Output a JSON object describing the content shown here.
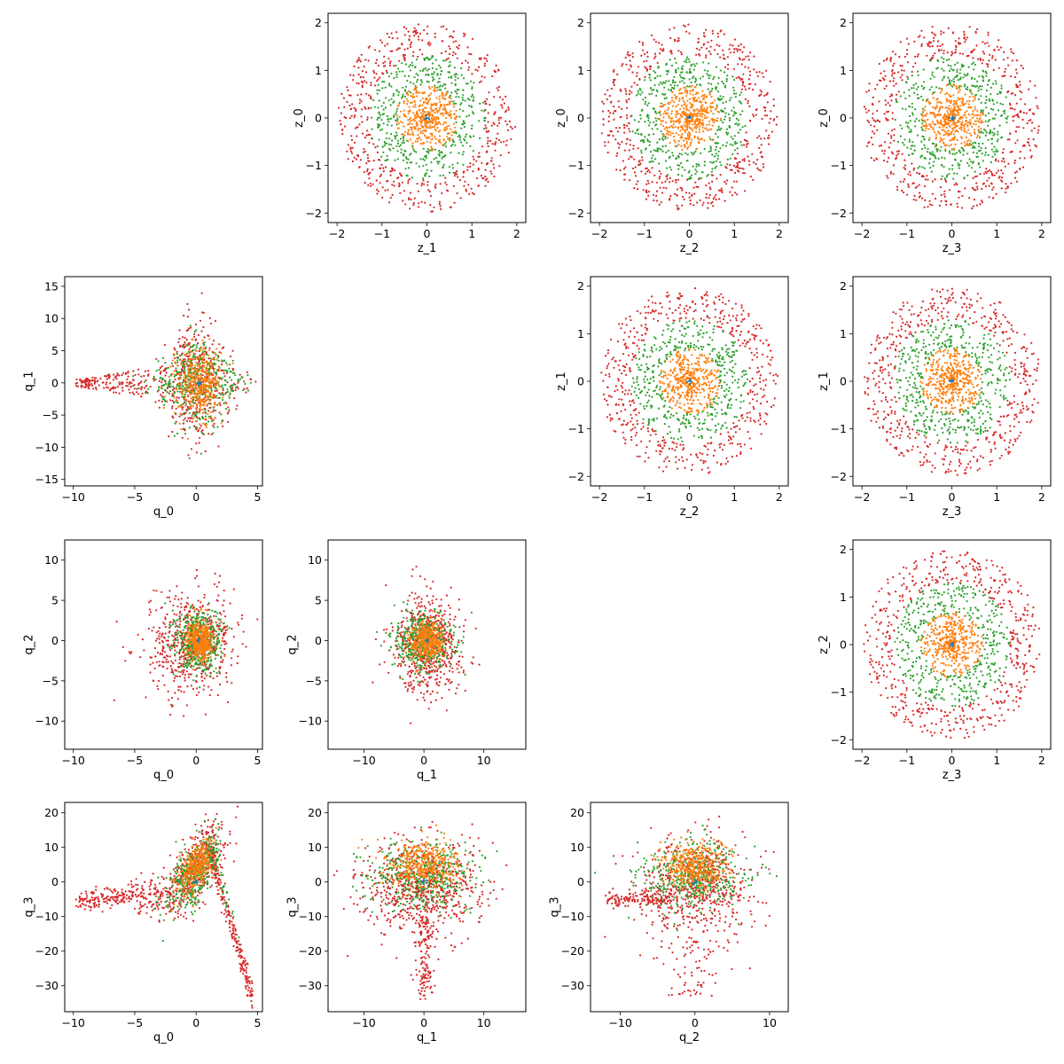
{
  "figure": {
    "description_visible": "",
    "series_colors": {
      "innermost": "#1f77b4",
      "inner": "#ff7f0e",
      "middle": "#2ca02c",
      "outer": "#d62728"
    }
  },
  "chart_data": [
    {
      "id": "z1_z0",
      "type": "scatter",
      "xlabel": "z_1",
      "ylabel": "z_0",
      "xlim": [
        -2.2,
        2.2
      ],
      "ylim": [
        -2.2,
        2.2
      ],
      "xticks": [
        -2,
        -1,
        0,
        1,
        2
      ],
      "yticks": [
        -2,
        -1,
        0,
        1,
        2
      ],
      "pattern": "rings",
      "series": [
        {
          "color": "#d62728",
          "radius": [
            1.3,
            1.98
          ],
          "n": 520
        },
        {
          "color": "#2ca02c",
          "radius": [
            0.65,
            1.3
          ],
          "n": 420
        },
        {
          "color": "#ff7f0e",
          "radius": [
            0.05,
            0.7
          ],
          "n": 420
        },
        {
          "color": "#1f77b4",
          "radius": [
            0.0,
            0.06
          ],
          "n": 8
        }
      ]
    },
    {
      "id": "z2_z0",
      "type": "scatter",
      "xlabel": "z_2",
      "ylabel": "z_0",
      "xlim": [
        -2.2,
        2.2
      ],
      "ylim": [
        -2.2,
        2.2
      ],
      "xticks": [
        -2,
        -1,
        0,
        1,
        2
      ],
      "yticks": [
        -2,
        -1,
        0,
        1,
        2
      ],
      "pattern": "rings",
      "series": [
        {
          "color": "#d62728",
          "radius": [
            1.3,
            1.98
          ],
          "n": 520
        },
        {
          "color": "#2ca02c",
          "radius": [
            0.65,
            1.3
          ],
          "n": 420
        },
        {
          "color": "#ff7f0e",
          "radius": [
            0.05,
            0.7
          ],
          "n": 420
        },
        {
          "color": "#1f77b4",
          "radius": [
            0.0,
            0.06
          ],
          "n": 8
        }
      ]
    },
    {
      "id": "z3_z0",
      "type": "scatter",
      "xlabel": "z_3",
      "ylabel": "z_0",
      "xlim": [
        -2.2,
        2.2
      ],
      "ylim": [
        -2.2,
        2.2
      ],
      "xticks": [
        -2,
        -1,
        0,
        1,
        2
      ],
      "yticks": [
        -2,
        -1,
        0,
        1,
        2
      ],
      "pattern": "rings",
      "series": [
        {
          "color": "#d62728",
          "radius": [
            1.3,
            1.98
          ],
          "n": 520
        },
        {
          "color": "#2ca02c",
          "radius": [
            0.65,
            1.3
          ],
          "n": 420
        },
        {
          "color": "#ff7f0e",
          "radius": [
            0.05,
            0.7
          ],
          "n": 420
        },
        {
          "color": "#1f77b4",
          "radius": [
            0.0,
            0.06
          ],
          "n": 8
        }
      ]
    },
    {
      "id": "q0_q1",
      "type": "scatter",
      "xlabel": "q_0",
      "ylabel": "q_1",
      "xlim": [
        -10.7,
        5.4
      ],
      "ylim": [
        -16.0,
        16.5
      ],
      "xticks": [
        -10,
        -5,
        0,
        5
      ],
      "yticks": [
        -15,
        -10,
        -5,
        0,
        5,
        10,
        15
      ],
      "pattern": "diamond_q1",
      "series": [
        {
          "color": "#d62728",
          "n": 650
        },
        {
          "color": "#2ca02c",
          "n": 420
        },
        {
          "color": "#ff7f0e",
          "n": 380
        },
        {
          "color": "#1f77b4",
          "n": 8
        }
      ]
    },
    {
      "id": "z2_z1",
      "type": "scatter",
      "xlabel": "z_2",
      "ylabel": "z_1",
      "xlim": [
        -2.2,
        2.2
      ],
      "ylim": [
        -2.2,
        2.2
      ],
      "xticks": [
        -2,
        -1,
        0,
        1,
        2
      ],
      "yticks": [
        -2,
        -1,
        0,
        1,
        2
      ],
      "pattern": "rings",
      "series": [
        {
          "color": "#d62728",
          "radius": [
            1.3,
            1.98
          ],
          "n": 520
        },
        {
          "color": "#2ca02c",
          "radius": [
            0.65,
            1.3
          ],
          "n": 420
        },
        {
          "color": "#ff7f0e",
          "radius": [
            0.05,
            0.7
          ],
          "n": 420
        },
        {
          "color": "#1f77b4",
          "radius": [
            0.0,
            0.06
          ],
          "n": 8
        }
      ]
    },
    {
      "id": "z3_z1",
      "type": "scatter",
      "xlabel": "z_3",
      "ylabel": "z_1",
      "xlim": [
        -2.2,
        2.2
      ],
      "ylim": [
        -2.2,
        2.2
      ],
      "xticks": [
        -2,
        -1,
        0,
        1,
        2
      ],
      "yticks": [
        -2,
        -1,
        0,
        1,
        2
      ],
      "pattern": "rings",
      "series": [
        {
          "color": "#d62728",
          "radius": [
            1.3,
            1.98
          ],
          "n": 520
        },
        {
          "color": "#2ca02c",
          "radius": [
            0.65,
            1.3
          ],
          "n": 420
        },
        {
          "color": "#ff7f0e",
          "radius": [
            0.05,
            0.7
          ],
          "n": 420
        },
        {
          "color": "#1f77b4",
          "radius": [
            0.0,
            0.06
          ],
          "n": 8
        }
      ]
    },
    {
      "id": "q0_q2",
      "type": "scatter",
      "xlabel": "q_0",
      "ylabel": "q_2",
      "xlim": [
        -10.7,
        5.4
      ],
      "ylim": [
        -13.5,
        12.5
      ],
      "xticks": [
        -10,
        -5,
        0,
        5
      ],
      "yticks": [
        -10,
        -5,
        0,
        5,
        10
      ],
      "pattern": "blob",
      "series": [
        {
          "color": "#d62728",
          "sx": 3.0,
          "sy": 5.2,
          "mx": -0.3,
          "my": -0.5,
          "n": 600
        },
        {
          "color": "#2ca02c",
          "sx": 1.7,
          "sy": 3.3,
          "mx": 0.1,
          "my": 0,
          "n": 450
        },
        {
          "color": "#ff7f0e",
          "sx": 0.9,
          "sy": 2.0,
          "mx": 0.3,
          "my": 0,
          "n": 400
        },
        {
          "color": "#1f77b4",
          "sx": 0.1,
          "sy": 0.2,
          "mx": 0.2,
          "my": 0,
          "n": 8
        }
      ]
    },
    {
      "id": "q1_q2",
      "type": "scatter",
      "xlabel": "q_1",
      "ylabel": "q_2",
      "xlim": [
        -16.0,
        17.0
      ],
      "ylim": [
        -13.5,
        12.5
      ],
      "xticks": [
        -10,
        0,
        10
      ],
      "yticks": [
        -10,
        -5,
        0,
        5,
        10
      ],
      "pattern": "blob",
      "series": [
        {
          "color": "#d62728",
          "sx": 4.6,
          "sy": 5.0,
          "mx": 0.5,
          "my": -0.5,
          "n": 600
        },
        {
          "color": "#2ca02c",
          "sx": 4.2,
          "sy": 3.0,
          "mx": 0,
          "my": 0,
          "n": 450
        },
        {
          "color": "#ff7f0e",
          "sx": 2.2,
          "sy": 2.0,
          "mx": 0.5,
          "my": 0,
          "n": 400
        },
        {
          "color": "#1f77b4",
          "sx": 0.2,
          "sy": 0.2,
          "mx": 0.5,
          "my": 0,
          "n": 8
        }
      ]
    },
    {
      "id": "z3_z2",
      "type": "scatter",
      "xlabel": "z_3",
      "ylabel": "z_2",
      "xlim": [
        -2.2,
        2.2
      ],
      "ylim": [
        -2.2,
        2.2
      ],
      "xticks": [
        -2,
        -1,
        0,
        1,
        2
      ],
      "yticks": [
        -2,
        -1,
        0,
        1,
        2
      ],
      "pattern": "rings",
      "series": [
        {
          "color": "#d62728",
          "radius": [
            1.3,
            1.98
          ],
          "n": 520
        },
        {
          "color": "#2ca02c",
          "radius": [
            0.65,
            1.3
          ],
          "n": 420
        },
        {
          "color": "#ff7f0e",
          "radius": [
            0.05,
            0.7
          ],
          "n": 420
        },
        {
          "color": "#1f77b4",
          "radius": [
            0.0,
            0.06
          ],
          "n": 8
        }
      ]
    },
    {
      "id": "q0_q3",
      "type": "scatter",
      "xlabel": "q_0",
      "ylabel": "q_3",
      "xlim": [
        -10.7,
        5.4
      ],
      "ylim": [
        -37.5,
        23.0
      ],
      "xticks": [
        -10,
        -5,
        0,
        5
      ],
      "yticks": [
        -30,
        -20,
        -10,
        0,
        10,
        20
      ],
      "pattern": "curve_q0q3",
      "series": [
        {
          "color": "#d62728",
          "n": 900
        },
        {
          "color": "#2ca02c",
          "n": 400
        },
        {
          "color": "#ff7f0e",
          "n": 320
        },
        {
          "color": "#1f77b4",
          "n": 8
        }
      ]
    },
    {
      "id": "q1_q3",
      "type": "scatter",
      "xlabel": "q_1",
      "ylabel": "q_3",
      "xlim": [
        -16.0,
        17.0
      ],
      "ylim": [
        -37.5,
        23.0
      ],
      "xticks": [
        -10,
        0,
        10
      ],
      "yticks": [
        -30,
        -20,
        -10,
        0,
        10,
        20
      ],
      "pattern": "funnel_q1q3",
      "series": [
        {
          "color": "#d62728",
          "n": 800
        },
        {
          "color": "#2ca02c",
          "n": 420
        },
        {
          "color": "#ff7f0e",
          "n": 380
        },
        {
          "color": "#1f77b4",
          "n": 8
        }
      ]
    },
    {
      "id": "q2_q3",
      "type": "scatter",
      "xlabel": "q_2",
      "ylabel": "q_3",
      "xlim": [
        -14.0,
        12.5
      ],
      "ylim": [
        -37.5,
        23.0
      ],
      "xticks": [
        -10,
        0,
        10
      ],
      "yticks": [
        -30,
        -20,
        -10,
        0,
        10,
        20
      ],
      "pattern": "funnel_q2q3",
      "series": [
        {
          "color": "#d62728",
          "n": 800
        },
        {
          "color": "#2ca02c",
          "n": 420
        },
        {
          "color": "#ff7f0e",
          "n": 380
        },
        {
          "color": "#1f77b4",
          "n": 8
        }
      ]
    }
  ]
}
